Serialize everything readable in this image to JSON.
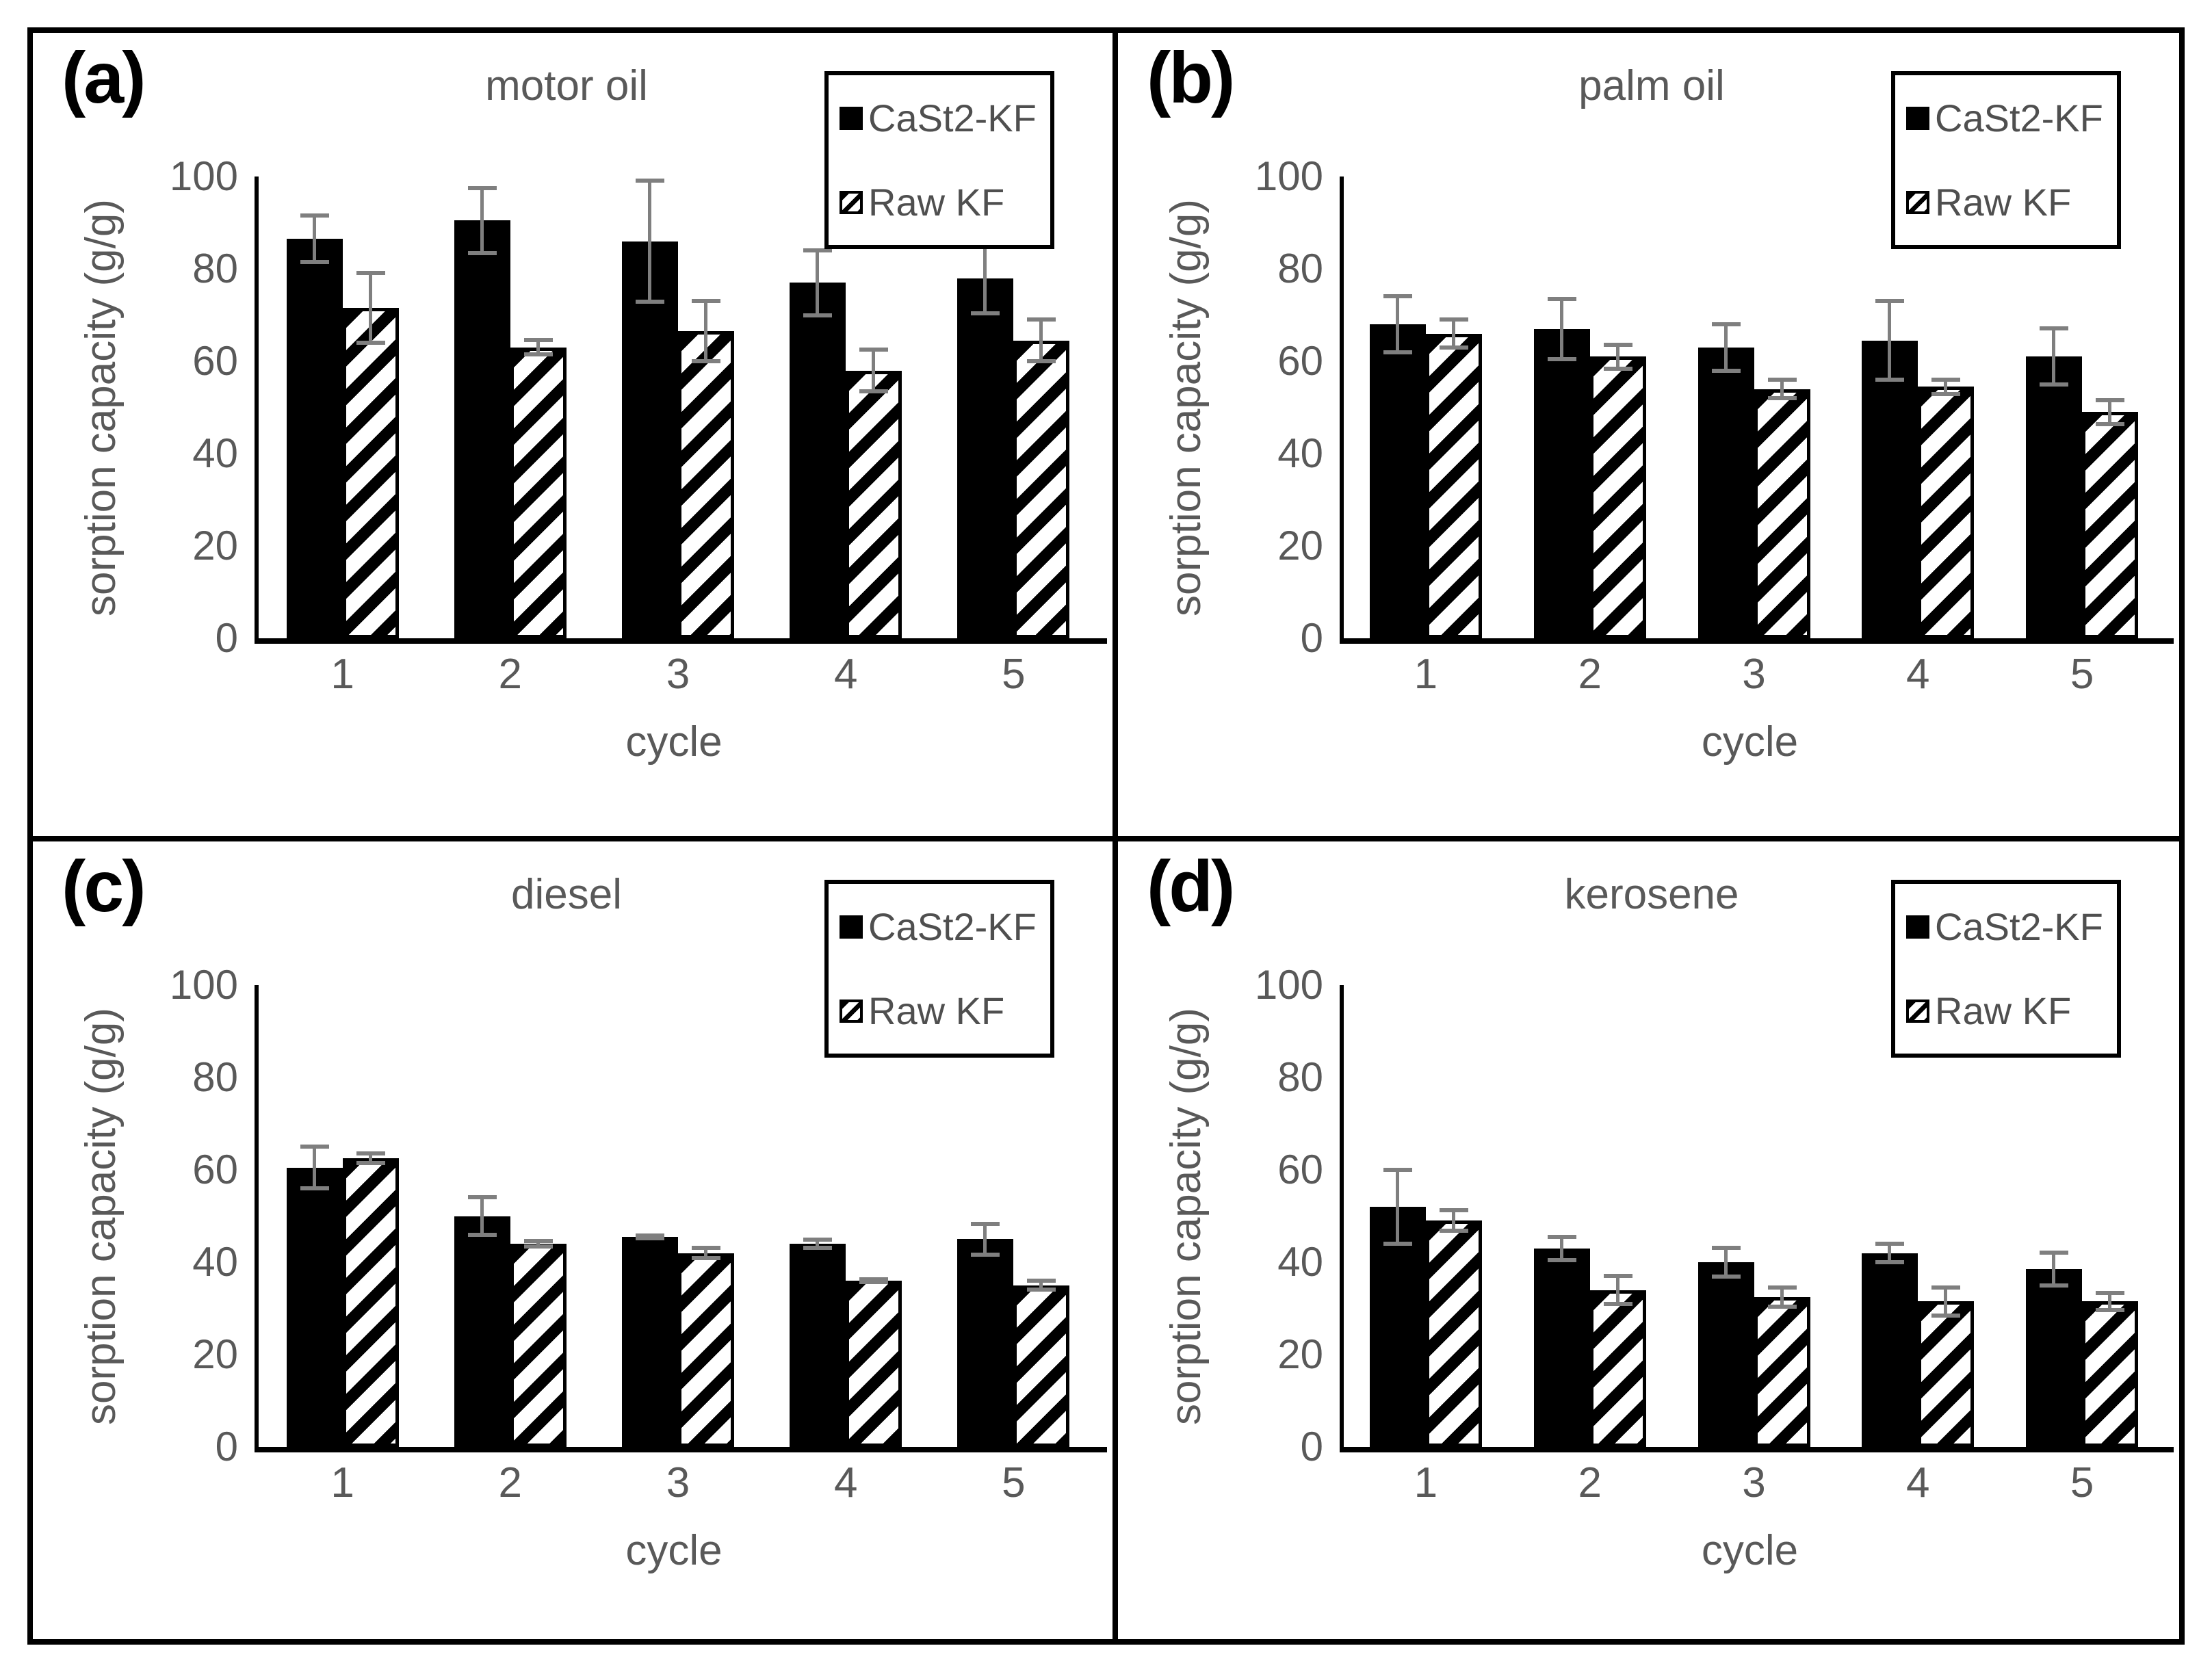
{
  "colors": {
    "bar_fill": "#000000",
    "hatch_foreground": "#000000",
    "hatch_background": "#ffffff",
    "error_bar": "#7f7f7f",
    "axis_line": "#000000",
    "chart_text": "#595959",
    "legend_text": "#4f4f4f",
    "panel_label_text": "#000000",
    "border": "#000000"
  },
  "chart_data": [
    {
      "type": "bar",
      "panel_label": "(a)",
      "title": "motor oil",
      "xlabel": "cycle",
      "ylabel": "sorption capacity (g/g)",
      "ylim": [
        0,
        100
      ],
      "yticks": [
        0,
        20,
        40,
        60,
        80,
        100
      ],
      "categories": [
        "1",
        "2",
        "3",
        "4",
        "5"
      ],
      "grid": false,
      "legend_position": "top-right",
      "series": [
        {
          "name": "CaSt2-KF",
          "style": "solid",
          "values": [
            86.5,
            90.5,
            86,
            77,
            78
          ],
          "errors": [
            5.5,
            7.5,
            13.5,
            7.5,
            8
          ]
        },
        {
          "name": "Raw KF",
          "style": "hatched",
          "values": [
            71.5,
            63,
            66.5,
            58,
            64.5
          ],
          "errors": [
            8,
            2,
            7,
            5,
            5
          ]
        }
      ]
    },
    {
      "type": "bar",
      "panel_label": "(b)",
      "title": "palm oil",
      "xlabel": "cycle",
      "ylabel": "sorption capacity (g/g)",
      "ylim": [
        0,
        100
      ],
      "yticks": [
        0,
        20,
        40,
        60,
        80,
        100
      ],
      "categories": [
        "1",
        "2",
        "3",
        "4",
        "5"
      ],
      "grid": false,
      "legend_position": "top-right",
      "series": [
        {
          "name": "CaSt2-KF",
          "style": "solid",
          "values": [
            68,
            67,
            63,
            64.5,
            61
          ],
          "errors": [
            6.5,
            7,
            5.5,
            9,
            6.5
          ]
        },
        {
          "name": "Raw KF",
          "style": "hatched",
          "values": [
            66,
            61,
            54,
            54.5,
            49
          ],
          "errors": [
            3.5,
            3,
            2.5,
            2,
            3
          ]
        }
      ]
    },
    {
      "type": "bar",
      "panel_label": "(c)",
      "title": "diesel",
      "xlabel": "cycle",
      "ylabel": "sorption capacity (g/g)",
      "ylim": [
        0,
        100
      ],
      "yticks": [
        0,
        20,
        40,
        60,
        80,
        100
      ],
      "categories": [
        "1",
        "2",
        "3",
        "4",
        "5"
      ],
      "grid": false,
      "legend_position": "top-right",
      "series": [
        {
          "name": "CaSt2-KF",
          "style": "solid",
          "values": [
            60.5,
            50,
            45.5,
            44,
            45
          ],
          "errors": [
            5,
            4.5,
            0.7,
            1.3,
            3.8
          ]
        },
        {
          "name": "Raw KF",
          "style": "hatched",
          "values": [
            62.5,
            44,
            42,
            36,
            35
          ],
          "errors": [
            1.5,
            1,
            1.5,
            0.7,
            1.4
          ]
        }
      ]
    },
    {
      "type": "bar",
      "panel_label": "(d)",
      "title": "kerosene",
      "xlabel": "cycle",
      "ylabel": "sorption capacity (g/g)",
      "ylim": [
        0,
        100
      ],
      "yticks": [
        0,
        20,
        40,
        60,
        80,
        100
      ],
      "categories": [
        "1",
        "2",
        "3",
        "4",
        "5"
      ],
      "grid": false,
      "legend_position": "top-right",
      "series": [
        {
          "name": "CaSt2-KF",
          "style": "solid",
          "values": [
            52,
            43,
            40,
            42,
            38.5
          ],
          "errors": [
            8.5,
            3,
            3.5,
            2.5,
            4
          ]
        },
        {
          "name": "Raw KF",
          "style": "hatched",
          "values": [
            49,
            34,
            32.5,
            31.5,
            31.5
          ],
          "errors": [
            2.7,
            3.5,
            2.5,
            3.5,
            2.3
          ]
        }
      ]
    }
  ]
}
